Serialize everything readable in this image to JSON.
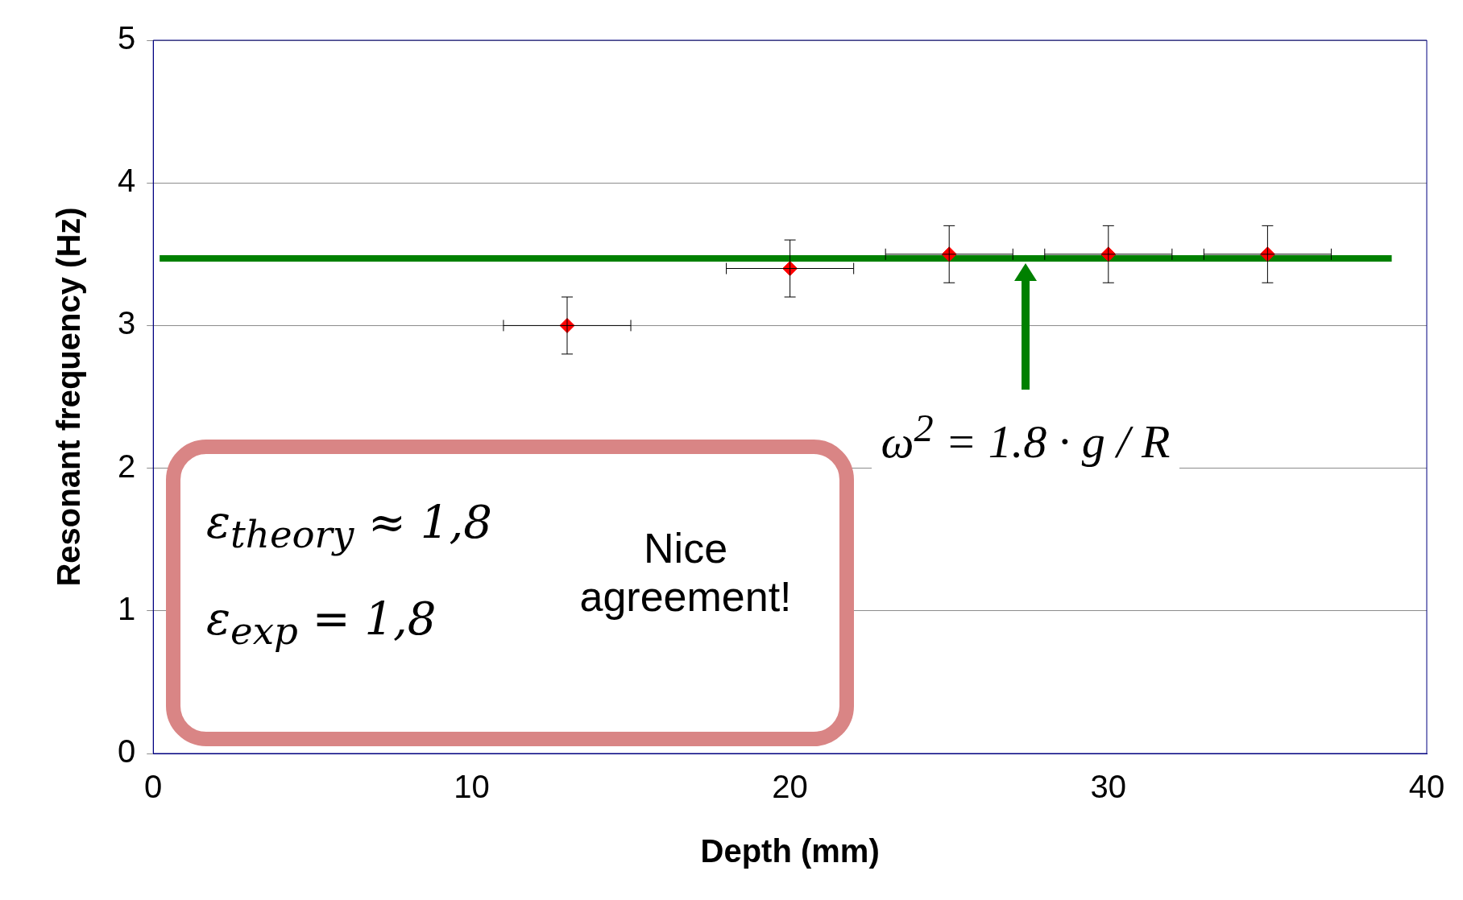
{
  "chart_data": {
    "type": "scatter",
    "xlabel": "Depth (mm)",
    "ylabel": "Resonant frequency (Hz)",
    "xlim": [
      0,
      40
    ],
    "xticks": [
      0,
      10,
      20,
      30,
      40
    ],
    "ylim": [
      0,
      5
    ],
    "yticks": [
      0,
      1,
      2,
      3,
      4,
      5
    ],
    "grid": "y",
    "series": [
      {
        "x": [
          13,
          20,
          25,
          30,
          35
        ],
        "color": "#ff0000",
        "marker": "diamond",
        "values": [
          3.0,
          3.4,
          3.5,
          3.5,
          3.5
        ],
        "errors": [
          0.2,
          0.2,
          0.2,
          0.2,
          0.2
        ],
        "xerrors": [
          2,
          2,
          2,
          2,
          2
        ]
      },
      {
        "type": "line",
        "marker": "none",
        "x": [
          0.2,
          38.9
        ],
        "values": [
          3.47,
          3.47
        ],
        "color": "#008000"
      }
    ],
    "annotations": [
      "ω$^{2}$ = 1.8 · g / R",
      "ε$_{theory}$ ≈ 1,8",
      "ε$_{exp}$ = 1,8",
      "Nice agreement!"
    ]
  }
}
